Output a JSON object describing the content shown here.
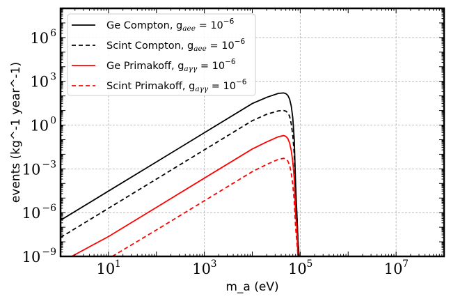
{
  "chart_data": {
    "type": "line",
    "xscale": "log",
    "yscale": "log",
    "xlim": [
      1,
      100000000
    ],
    "ylim": [
      1e-09,
      100000000.0
    ],
    "xlabel": "m_a (eV)",
    "ylabel": "events (kg^-1 year^-1)",
    "grid": true,
    "legend_position": "upper-left",
    "x_ticks": [
      {
        "value": 10,
        "base": "10",
        "exp": "1"
      },
      {
        "value": 1000,
        "base": "10",
        "exp": "3"
      },
      {
        "value": 100000,
        "base": "10",
        "exp": "5"
      },
      {
        "value": 10000000,
        "base": "10",
        "exp": "7"
      }
    ],
    "y_ticks": [
      {
        "value": 1e-09,
        "base": "10",
        "exp": "−9"
      },
      {
        "value": 1e-06,
        "base": "10",
        "exp": "−6"
      },
      {
        "value": 0.001,
        "base": "10",
        "exp": "−3"
      },
      {
        "value": 1,
        "base": "10",
        "exp": "0"
      },
      {
        "value": 1000,
        "base": "10",
        "exp": "3"
      },
      {
        "value": 1000000,
        "base": "10",
        "exp": "6"
      }
    ],
    "series": [
      {
        "name": "Ge Compton",
        "legend_prefix": "Ge Compton, g",
        "legend_sub": "aee",
        "legend_value": "= 10",
        "legend_exp": "−6",
        "color": "#000000",
        "dash": "solid",
        "x": [
          1,
          10,
          100,
          1000,
          10000,
          20000,
          35000,
          45000,
          50000,
          55000,
          60000,
          65000,
          70000,
          75000,
          80000,
          85000,
          90000,
          95000
        ],
        "y": [
          3e-07,
          3e-05,
          0.003,
          0.3,
          30,
          80,
          150,
          160,
          145,
          110,
          60,
          20,
          3,
          0.1,
          0.0001,
          1e-06,
          1e-08,
          1e-09
        ]
      },
      {
        "name": "Scint Compton",
        "legend_prefix": "Scint Compton, g",
        "legend_sub": "aee",
        "legend_value": "= 10",
        "legend_exp": "−6",
        "color": "#000000",
        "dash": "dashed",
        "x": [
          1,
          10,
          100,
          1000,
          10000,
          20000,
          35000,
          45000,
          50000,
          55000,
          60000,
          65000,
          70000,
          75000,
          80000,
          85000,
          90000,
          95000
        ],
        "y": [
          2e-08,
          2e-06,
          0.0002,
          0.02,
          2,
          5.5,
          9.5,
          10,
          9,
          7,
          4,
          1.2,
          0.2,
          0.01,
          2e-05,
          1e-06,
          1e-08,
          1e-09
        ]
      },
      {
        "name": "Ge Primakoff",
        "legend_prefix": "Ge Primakoff, g",
        "legend_sub": "aγγ",
        "legend_value": "= 10",
        "legend_exp": "−6",
        "color": "#ff0000",
        "dash": "solid",
        "x": [
          1.7,
          10,
          100,
          1000,
          10000,
          20000,
          35000,
          45000,
          50000,
          55000,
          60000,
          65000,
          70000,
          75000,
          80000,
          85000,
          90000
        ],
        "y": [
          1e-09,
          2.3e-08,
          2.3e-06,
          0.00023,
          0.023,
          0.07,
          0.16,
          0.19,
          0.17,
          0.12,
          0.06,
          0.018,
          0.003,
          0.0002,
          1e-06,
          1e-07,
          1e-09
        ]
      },
      {
        "name": "Scint Primakoff",
        "legend_prefix": "Scint Primakoff, g",
        "legend_sub": "aγγ",
        "legend_value": "= 10",
        "legend_exp": "−6",
        "color": "#ff0000",
        "dash": "dashed",
        "x": [
          12,
          100,
          1000,
          10000,
          20000,
          35000,
          45000,
          50000,
          55000,
          60000,
          65000,
          70000,
          75000,
          80000,
          85000,
          90000
        ],
        "y": [
          1e-09,
          6.5e-08,
          6.5e-06,
          0.00065,
          0.002,
          0.0045,
          0.0053,
          0.0048,
          0.0035,
          0.0018,
          0.0005,
          8e-05,
          6e-06,
          1e-07,
          1e-08,
          1e-09
        ]
      }
    ]
  }
}
